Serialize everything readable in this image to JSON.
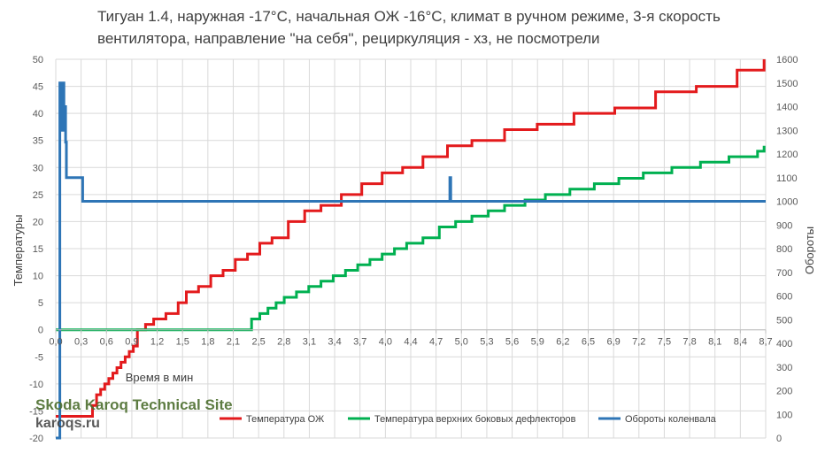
{
  "chart_data": {
    "type": "line",
    "title": "Тигуан 1.4, наружная -17°C, начальная ОЖ -16°C, климат  в ручном режиме, 3-я скорость вентилятора, направление \"на себя\", рециркуляция - хз, не посмотрели",
    "xlabel": "Время в мин",
    "ylabel": "Температуры",
    "y2label": "Обороты",
    "xlim": [
      0,
      8.7
    ],
    "ylim": [
      -20,
      50
    ],
    "y2lim": [
      0,
      1600
    ],
    "x_ticks": [
      "0,0",
      "0,3",
      "0,6",
      "0,9",
      "1,2",
      "1,5",
      "1,8",
      "2,1",
      "2,5",
      "2,8",
      "3,1",
      "3,4",
      "3,7",
      "4,0",
      "4,4",
      "4,7",
      "5,0",
      "5,3",
      "5,6",
      "5,9",
      "6,2",
      "6,5",
      "6,9",
      "7,2",
      "7,5",
      "7,8",
      "8,1",
      "8,4",
      "8,7"
    ],
    "y_ticks": [
      "-20",
      "-15",
      "-10",
      "-5",
      "0",
      "5",
      "10",
      "15",
      "20",
      "25",
      "30",
      "35",
      "40",
      "45",
      "50"
    ],
    "y2_ticks": [
      "0",
      "100",
      "200",
      "300",
      "400",
      "500",
      "600",
      "700",
      "800",
      "900",
      "1000",
      "1100",
      "1200",
      "1300",
      "1400",
      "1500",
      "1600"
    ],
    "grid": true,
    "legend_position": "bottom",
    "series": [
      {
        "name": "Температура ОЖ",
        "axis": "left",
        "color": "#e31a1c",
        "step": true,
        "x": [
          0.0,
          0.45,
          0.5,
          0.55,
          0.6,
          0.65,
          0.7,
          0.75,
          0.8,
          0.85,
          0.9,
          0.95,
          1.0,
          1.1,
          1.2,
          1.35,
          1.5,
          1.6,
          1.75,
          1.9,
          2.05,
          2.2,
          2.35,
          2.5,
          2.65,
          2.85,
          3.05,
          3.25,
          3.5,
          3.75,
          4.0,
          4.25,
          4.5,
          4.8,
          5.1,
          5.5,
          5.9,
          6.35,
          6.85,
          7.35,
          7.85,
          8.35,
          8.68
        ],
        "values": [
          -16,
          -14,
          -12,
          -11,
          -10,
          -9,
          -8,
          -7,
          -6,
          -5,
          -4,
          -3,
          0,
          1,
          2,
          3,
          5,
          7,
          8,
          10,
          11,
          13,
          14,
          16,
          17,
          20,
          22,
          23,
          25,
          27,
          29,
          30,
          32,
          34,
          35,
          37,
          38,
          40,
          41,
          44,
          45,
          48,
          50
        ]
      },
      {
        "name": "Температура верхних боковых дефлекторов",
        "axis": "left",
        "color": "#00b050",
        "step": true,
        "x": [
          0.0,
          2.3,
          2.4,
          2.5,
          2.6,
          2.7,
          2.8,
          2.95,
          3.1,
          3.25,
          3.4,
          3.55,
          3.7,
          3.85,
          4.0,
          4.15,
          4.3,
          4.5,
          4.7,
          4.9,
          5.1,
          5.3,
          5.5,
          5.75,
          6.0,
          6.3,
          6.6,
          6.9,
          7.2,
          7.55,
          7.9,
          8.25,
          8.6,
          8.68
        ],
        "values": [
          0,
          0,
          2,
          3,
          4,
          5,
          6,
          7,
          8,
          9,
          10,
          11,
          12,
          13,
          14,
          15,
          16,
          17,
          19,
          20,
          21,
          22,
          23,
          24,
          25,
          26,
          27,
          28,
          29,
          30,
          31,
          32,
          33,
          34
        ]
      },
      {
        "name": "Обороты коленвала",
        "axis": "right",
        "color": "#2e75b6",
        "step": true,
        "x": [
          0.0,
          0.05,
          0.07,
          0.08,
          0.09,
          0.1,
          0.11,
          0.12,
          0.13,
          0.16,
          0.33,
          0.34,
          4.83,
          4.84,
          4.86,
          8.7
        ],
        "values": [
          0,
          1500,
          1400,
          1300,
          1500,
          1300,
          1400,
          1250,
          1100,
          1100,
          1000,
          1000,
          1100,
          1000,
          1000,
          1000
        ]
      }
    ]
  },
  "watermark": {
    "title": "Skoda Karoq Technical Site",
    "url": "karoqs.ru"
  }
}
